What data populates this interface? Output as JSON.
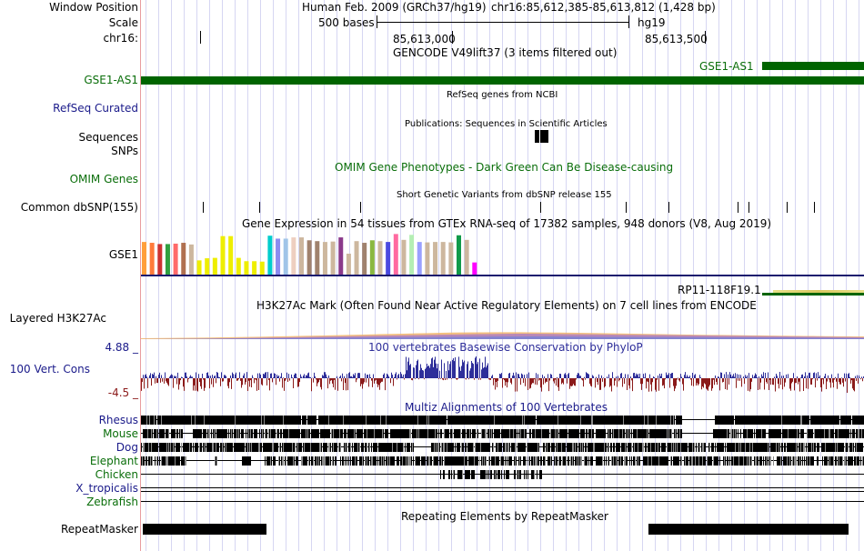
{
  "labels": {
    "window_position": "Window Position",
    "scale": "Scale",
    "chrom": "chr16:",
    "gse1_as1": "GSE1-AS1",
    "refseq": "RefSeq Curated",
    "sequences": "Sequences",
    "snps": "SNPs",
    "omim": "OMIM Genes",
    "common_dbsnp": "Common dbSNP(155)",
    "gse1": "GSE1",
    "layered": "Layered H3K27Ac",
    "cons_max": "4.88 _",
    "cons_name": "100 Vert. Cons",
    "cons_min": "-4.5 _",
    "rhesus": "Rhesus",
    "mouse": "Mouse",
    "dog": "Dog",
    "elephant": "Elephant",
    "chicken": "Chicken",
    "x_tropicalis": "X_tropicalis",
    "zebrafish": "Zebrafish",
    "repeatmasker": "RepeatMasker"
  },
  "header": {
    "assembly": "Human Feb. 2009 (GRCh37/hg19)",
    "position": "chr16:85,612,385-85,613,812 (1,428 bp)",
    "scale_text": "500 bases",
    "scale_db": "hg19",
    "coord1": "85,613,000",
    "coord2": "85,613,500"
  },
  "tracks": {
    "gencode_title": "GENCODE V49lift37 (3 items filtered out)",
    "gencode_item": "GSE1-AS1",
    "refseq_title": "RefSeq genes from NCBI",
    "publications_title": "Publications: Sequences in Scientific Articles",
    "omim_title": "OMIM Gene Phenotypes - Dark Green Can Be Disease-causing",
    "dbsnp_title": "Short Genetic Variants from dbSNP release 155",
    "gtex_title": "Gene Expression in 54 tissues from GTEx RNA-seq of 17382 samples, 948 donors (V8, Aug 2019)",
    "rp11_label": "RP11-118F19.1",
    "h3k27ac_title": "H3K27Ac Mark (Often Found Near Active Regulatory Elements) on 7 cell lines from ENCODE",
    "phylop_title": "100 vertebrates Basewise Conservation by PhyloP",
    "multiz_title": "Multiz Alignments of 100 Vertebrates",
    "repeat_title": "Repeating Elements by RepeatMasker"
  },
  "colors": {
    "gencode_green": "#006400",
    "omim_green": "#0a6e0a",
    "track_blue": "#1a1a8a",
    "cons_pos": "#2e2e9a",
    "cons_neg": "#8b1a1a",
    "label_sep": "#e89ca0"
  },
  "gtex_bar_colors": [
    "#ff9f3b",
    "#ff7b3b",
    "#cc3333",
    "#30a040",
    "#ff6a6a",
    "#b07050",
    "#cdb79e",
    "#eeee00",
    "#eeee00",
    "#eeee00",
    "#eeee00",
    "#eeee00",
    "#eeee00",
    "#eeee00",
    "#eeee00",
    "#eeee00",
    "#00cdcd",
    "#8b8bf0",
    "#a0c4e8",
    "#eecfc0",
    "#cdb79e",
    "#a0826d",
    "#a0826d",
    "#cdb79e",
    "#cdb79e",
    "#8b3a8b",
    "#cdb79e",
    "#cdb79e",
    "#a0826d",
    "#8ab840",
    "#cdb79e",
    "#4a4ae0",
    "#ff6aa0",
    "#cdb79e",
    "#b4eeb4",
    "#9aa0ff",
    "#cdb79e",
    "#cdb79e",
    "#cdb79e",
    "#cdb79e",
    "#119a4a",
    "#cdb79e",
    "#ff00ff"
  ],
  "gtex_bar_levels": [
    0.78,
    0.76,
    0.73,
    0.73,
    0.74,
    0.76,
    0.72,
    0.34,
    0.39,
    0.4,
    0.92,
    0.92,
    0.4,
    0.32,
    0.32,
    0.31,
    0.93,
    0.86,
    0.86,
    0.89,
    0.89,
    0.82,
    0.8,
    0.78,
    0.79,
    0.89,
    0.5,
    0.8,
    0.76,
    0.82,
    0.8,
    0.78,
    0.97,
    0.83,
    0.95,
    0.78,
    0.77,
    0.78,
    0.78,
    0.77,
    0.94,
    0.83,
    0.29
  ]
}
